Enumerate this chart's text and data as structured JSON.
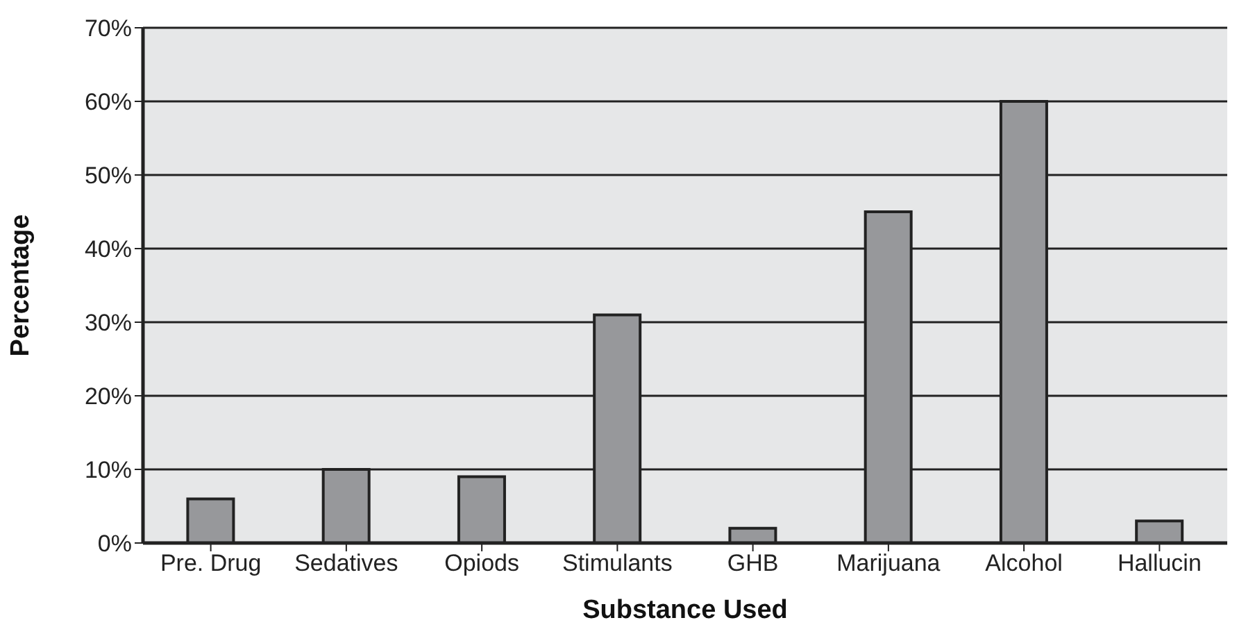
{
  "chart_data": {
    "type": "bar",
    "xlabel": "Substance Used",
    "ylabel": "Percentage",
    "categories": [
      "Pre. Drug",
      "Sedatives",
      "Opiods",
      "Stimulants",
      "GHB",
      "Marijuana",
      "Alcohol",
      "Hallucin"
    ],
    "values": [
      6,
      10,
      9,
      31,
      2,
      45,
      60,
      3
    ],
    "color": "#97989b",
    "ylim": [
      0,
      70
    ],
    "yticks": [
      {
        "value": 0,
        "label": "0%"
      },
      {
        "value": 10,
        "label": "10%"
      },
      {
        "value": 20,
        "label": "20%"
      },
      {
        "value": 30,
        "label": "30%"
      },
      {
        "value": 40,
        "label": "40%"
      },
      {
        "value": 50,
        "label": "50%"
      },
      {
        "value": 60,
        "label": "60%"
      },
      {
        "value": 70,
        "label": "70%"
      }
    ],
    "grid": "y",
    "legend": false
  }
}
